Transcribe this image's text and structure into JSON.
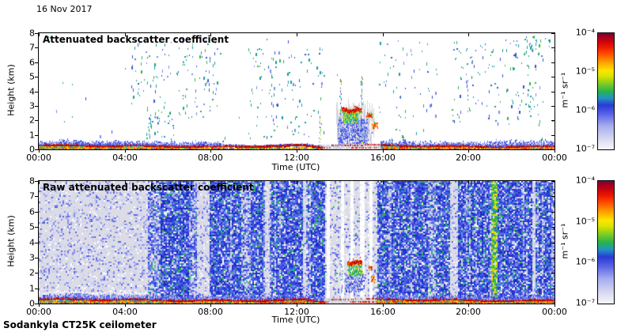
{
  "page": {
    "date_label": "16 Nov 2017",
    "footer": "Sodankyla CT25K ceilometer",
    "background": "#ffffff"
  },
  "colorbar": {
    "unit": "m⁻¹ sr⁻¹",
    "tick_labels": [
      "10⁻⁴",
      "10⁻⁵",
      "10⁻⁶",
      "10⁻⁷"
    ],
    "scale": "log",
    "range": [
      1e-07,
      0.0001
    ],
    "gradient_stops": [
      [
        0.0,
        "#f6f6fc"
      ],
      [
        0.08,
        "#dcdcf2"
      ],
      [
        0.2,
        "#a8aeee"
      ],
      [
        0.3,
        "#5b66e8"
      ],
      [
        0.38,
        "#2a3ad4"
      ],
      [
        0.44,
        "#2292c4"
      ],
      [
        0.5,
        "#28b44e"
      ],
      [
        0.57,
        "#88cc20"
      ],
      [
        0.63,
        "#d8e400"
      ],
      [
        0.68,
        "#ffe400"
      ],
      [
        0.75,
        "#ffa000"
      ],
      [
        0.82,
        "#ff5000"
      ],
      [
        0.88,
        "#ee1800"
      ],
      [
        0.94,
        "#c00014"
      ],
      [
        1.0,
        "#7c0034"
      ]
    ]
  },
  "chart_data": [
    {
      "type": "heatmap",
      "title": "Attenuated backscatter coefficient",
      "xlabel": "Time (UTC)",
      "ylabel": "Height (km)",
      "x_ticks": [
        "00:00",
        "04:00",
        "08:00",
        "12:00",
        "16:00",
        "20:00",
        "00:00"
      ],
      "y_ticks": [
        "0",
        "1",
        "2",
        "3",
        "4",
        "5",
        "6",
        "7",
        "8"
      ],
      "x_range_hours": [
        0,
        24
      ],
      "y_range_km": [
        0,
        8
      ],
      "seed": 12345,
      "background": "white",
      "description": "Processed backscatter: boundary-layer echo below ~0.7 km all day with strong red line near 0.3 km; low cloud layer at 2-3 km between ~13:50 and 15:30 UTC; sparse weak echoes aloft.",
      "features": {
        "surface_layer": {
          "red_line_km": 0.3,
          "top_km": 0.7,
          "segments": [
            {
              "t0": 0,
              "t1": 8.6,
              "mode": "thick"
            },
            {
              "t0": 8.6,
              "t1": 13.2,
              "mode": "thin"
            },
            {
              "t0": 13.2,
              "t1": 15.9,
              "mode": "gray"
            },
            {
              "t0": 15.9,
              "t1": 24,
              "mode": "thick"
            }
          ]
        },
        "speck_regions": [
          {
            "t0": 4.3,
            "t1": 8.3,
            "h0": 2.2,
            "h1": 7.7,
            "n": 150
          },
          {
            "t0": 5.0,
            "t1": 6.3,
            "h0": 0.7,
            "h1": 2.4,
            "n": 35
          },
          {
            "t0": 9.7,
            "t1": 13.3,
            "h0": 0.8,
            "h1": 7.2,
            "n": 115
          },
          {
            "t0": 15.8,
            "t1": 18.6,
            "h0": 0.5,
            "h1": 7.6,
            "n": 55
          },
          {
            "t0": 19.2,
            "t1": 23.3,
            "h0": 1.8,
            "h1": 7.6,
            "n": 150
          },
          {
            "t0": 22.6,
            "t1": 24.0,
            "h0": 6.4,
            "h1": 7.8,
            "n": 28
          },
          {
            "t0": 0.2,
            "t1": 24.0,
            "h0": 0.6,
            "h1": 7.9,
            "n": 45
          }
        ],
        "cloud_event": {
          "t0": 13.85,
          "t1": 15.6,
          "streaks": 170,
          "fill": {
            "t0": 13.9,
            "t1": 15.3,
            "h0": 0.35,
            "h1": 2.15,
            "n": 650
          },
          "core": {
            "t0": 14.15,
            "t1": 14.85,
            "h0": 1.85,
            "h1": 2.6,
            "n": 260
          },
          "cap": {
            "t0": 14.08,
            "t1": 15.05,
            "h": 2.72,
            "dh": 0.22
          },
          "columns": [
            {
              "t": 13.05,
              "h0": 0.3,
              "h1": 2.3
            },
            {
              "t": 14.02,
              "h0": 0.5,
              "h1": 4.85
            },
            {
              "t": 15.02,
              "h0": 0.5,
              "h1": 5.0
            }
          ],
          "blobs": [
            {
              "t0": 15.25,
              "t1": 15.5,
              "h0": 2.25,
              "h1": 2.55,
              "n": 45
            },
            {
              "t0": 15.5,
              "t1": 15.75,
              "h0": 1.5,
              "h1": 1.9,
              "n": 35
            }
          ]
        }
      }
    },
    {
      "type": "heatmap",
      "title": "Raw attenuated backscatter coefficient",
      "xlabel": "Time (UTC)",
      "ylabel": "Height (km)",
      "x_ticks": [
        "00:00",
        "04:00",
        "08:00",
        "12:00",
        "16:00",
        "20:00",
        "00:00"
      ],
      "y_ticks": [
        "0",
        "1",
        "2",
        "3",
        "4",
        "5",
        "6",
        "7",
        "8"
      ],
      "x_range_hours": [
        0,
        24
      ],
      "y_range_km": [
        0,
        8
      ],
      "seed": 98765,
      "background": "noise",
      "description": "Raw signal: instrument noise fills the profile; quieter pale period 00:00-05:00; striped noise 05:00-08:00; weak pale columns 13:20-15:40; pale stripe ~19:20; green high-noise stripe ~21:10; same surface layer and 2-3 km cloud event.",
      "features": {
        "noise_regions": [
          {
            "t0": 0,
            "t1": 5.05,
            "mode": "light"
          },
          {
            "t0": 5.05,
            "t1": 8.1,
            "mode": "striped"
          },
          {
            "t0": 8.1,
            "t1": 13.3,
            "mode": "dense"
          },
          {
            "t0": 13.3,
            "t1": 15.7,
            "mode": "weak"
          },
          {
            "t0": 15.7,
            "t1": 24,
            "mode": "dense"
          }
        ],
        "white_gap_columns": [
          [
            13.38,
            13.52
          ],
          [
            14.0,
            14.16
          ],
          [
            14.44,
            14.58
          ],
          [
            14.92,
            15.1
          ],
          [
            15.34,
            15.5
          ]
        ],
        "light_columns": [
          [
            10.52,
            10.68
          ],
          [
            12.28,
            12.44
          ],
          [
            19.12,
            19.5
          ],
          [
            22.95,
            23.08
          ]
        ],
        "green_column": [
          21.05,
          21.32
        ],
        "surface_layer": {
          "red_line_km": 0.3,
          "top_km": 0.8,
          "white_cap_until": 5.05,
          "segments": [
            {
              "t0": 0,
              "t1": 13.3,
              "mode": "thick"
            },
            {
              "t0": 13.3,
              "t1": 15.7,
              "mode": "gray"
            },
            {
              "t0": 15.7,
              "t1": 24,
              "mode": "thick"
            }
          ]
        },
        "cloud_event": {
          "t0": 14.25,
          "t1": 15.6,
          "streaks": 0,
          "fill": {
            "t0": 14.25,
            "t1": 15.15,
            "h0": 0.8,
            "h1": 2.0,
            "n": 300
          },
          "core": {
            "t0": 14.4,
            "t1": 15.05,
            "h0": 1.85,
            "h1": 2.55,
            "n": 180
          },
          "cap": {
            "t0": 14.35,
            "t1": 15.05,
            "h": 2.68,
            "dh": 0.18
          },
          "columns": [
            {
              "t": 14.1,
              "h0": 0.8,
              "h1": 2.9
            }
          ],
          "blobs": [
            {
              "t0": 15.3,
              "t1": 15.5,
              "h0": 2.2,
              "h1": 2.5,
              "n": 25
            },
            {
              "t0": 15.45,
              "t1": 15.65,
              "h0": 1.45,
              "h1": 1.85,
              "n": 25
            }
          ]
        }
      }
    }
  ]
}
